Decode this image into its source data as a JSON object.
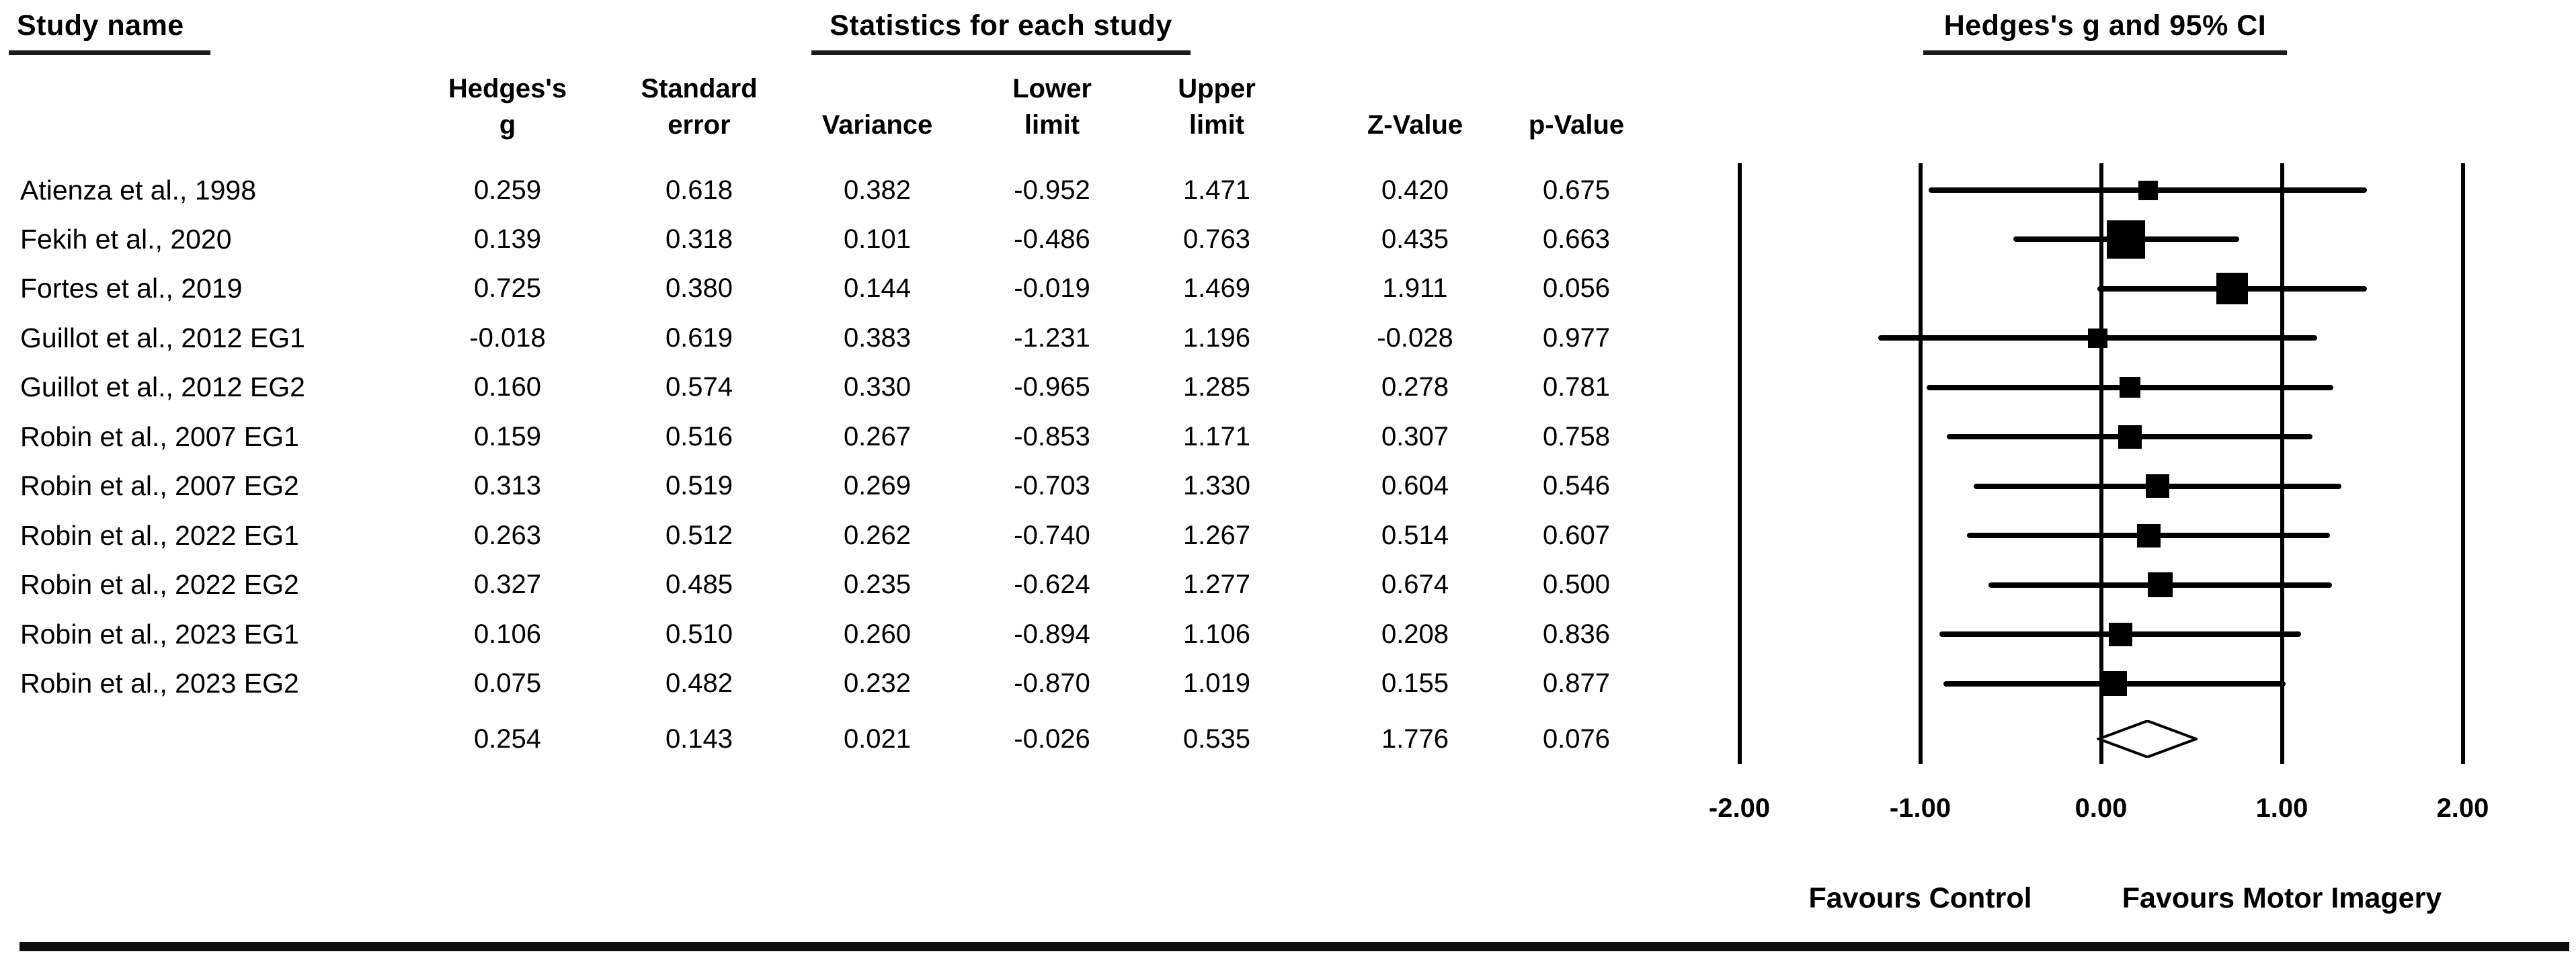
{
  "titles": {
    "study_col": "Study name",
    "stats": "Statistics for each study",
    "plot": "Hedges's g and 95% CI"
  },
  "columns": [
    {
      "line1": "Hedges's",
      "line2": "g"
    },
    {
      "line1": "",
      "line2": "Variance"
    },
    {
      "line1": "Standard",
      "line2": "error"
    },
    {
      "line1": "Lower",
      "line2": "limit"
    },
    {
      "line1": "Upper",
      "line2": "limit"
    },
    {
      "line1": "",
      "line2": "Z-Value"
    },
    {
      "line1": "",
      "line2": "p-Value"
    }
  ],
  "chart_data": {
    "type": "forest",
    "title": "Hedges's g and 95% CI",
    "effect_measure": "Hedges's g",
    "x_range": [
      -2.5,
      2.5
    ],
    "ticks": [
      {
        "v": -2,
        "label": "-2.00"
      },
      {
        "v": -1,
        "label": "-1.00"
      },
      {
        "v": 0,
        "label": "0.00"
      },
      {
        "v": 1,
        "label": "1.00"
      },
      {
        "v": 2,
        "label": "2.00"
      }
    ],
    "footer": {
      "left": "Favours Control",
      "right": "Favours Motor Imagery"
    },
    "column_order": [
      "hedges_g",
      "standard_error",
      "variance",
      "lower_limit",
      "upper_limit",
      "z_value",
      "p_value"
    ],
    "studies": [
      {
        "name": "Atienza et al., 1998",
        "cells": [
          "0.259",
          "0.618",
          "0.382",
          "-0.952",
          "1.471",
          "0.420",
          "0.675"
        ],
        "g": 0.259,
        "se": 0.618,
        "lower": -0.952,
        "upper": 1.471
      },
      {
        "name": "Fekih et al., 2020",
        "cells": [
          "0.139",
          "0.318",
          "0.101",
          "-0.486",
          "0.763",
          "0.435",
          "0.663"
        ],
        "g": 0.139,
        "se": 0.318,
        "lower": -0.486,
        "upper": 0.763
      },
      {
        "name": "Fortes et al., 2019",
        "cells": [
          "0.725",
          "0.380",
          "0.144",
          "-0.019",
          "1.469",
          "1.911",
          "0.056"
        ],
        "g": 0.725,
        "se": 0.38,
        "lower": -0.019,
        "upper": 1.469
      },
      {
        "name": "Guillot et al., 2012 EG1",
        "cells": [
          "-0.018",
          "0.619",
          "0.383",
          "-1.231",
          "1.196",
          "-0.028",
          "0.977"
        ],
        "g": -0.018,
        "se": 0.619,
        "lower": -1.231,
        "upper": 1.196
      },
      {
        "name": "Guillot et al., 2012 EG2",
        "cells": [
          "0.160",
          "0.574",
          "0.330",
          "-0.965",
          "1.285",
          "0.278",
          "0.781"
        ],
        "g": 0.16,
        "se": 0.574,
        "lower": -0.965,
        "upper": 1.285
      },
      {
        "name": "Robin et al., 2007 EG1",
        "cells": [
          "0.159",
          "0.516",
          "0.267",
          "-0.853",
          "1.171",
          "0.307",
          "0.758"
        ],
        "g": 0.159,
        "se": 0.516,
        "lower": -0.853,
        "upper": 1.171
      },
      {
        "name": "Robin et al., 2007 EG2",
        "cells": [
          "0.313",
          "0.519",
          "0.269",
          "-0.703",
          "1.330",
          "0.604",
          "0.546"
        ],
        "g": 0.313,
        "se": 0.519,
        "lower": -0.703,
        "upper": 1.33
      },
      {
        "name": "Robin et al., 2022 EG1",
        "cells": [
          "0.263",
          "0.512",
          "0.262",
          "-0.740",
          "1.267",
          "0.514",
          "0.607"
        ],
        "g": 0.263,
        "se": 0.512,
        "lower": -0.74,
        "upper": 1.267
      },
      {
        "name": "Robin et al., 2022 EG2",
        "cells": [
          "0.327",
          "0.485",
          "0.235",
          "-0.624",
          "1.277",
          "0.674",
          "0.500"
        ],
        "g": 0.327,
        "se": 0.485,
        "lower": -0.624,
        "upper": 1.277
      },
      {
        "name": "Robin et al., 2023 EG1",
        "cells": [
          "0.106",
          "0.510",
          "0.260",
          "-0.894",
          "1.106",
          "0.208",
          "0.836"
        ],
        "g": 0.106,
        "se": 0.51,
        "lower": -0.894,
        "upper": 1.106
      },
      {
        "name": "Robin et al., 2023 EG2",
        "cells": [
          "0.075",
          "0.482",
          "0.232",
          "-0.870",
          "1.019",
          "0.155",
          "0.877"
        ],
        "g": 0.075,
        "se": 0.482,
        "lower": -0.87,
        "upper": 1.019
      }
    ],
    "summary": {
      "name": "",
      "cells": [
        "0.254",
        "0.143",
        "0.021",
        "-0.026",
        "0.535",
        "1.776",
        "0.076"
      ],
      "g": 0.254,
      "se": 0.143,
      "lower": -0.026,
      "upper": 0.535
    }
  },
  "colors": {
    "ink": "#000000",
    "background": "#ffffff"
  }
}
